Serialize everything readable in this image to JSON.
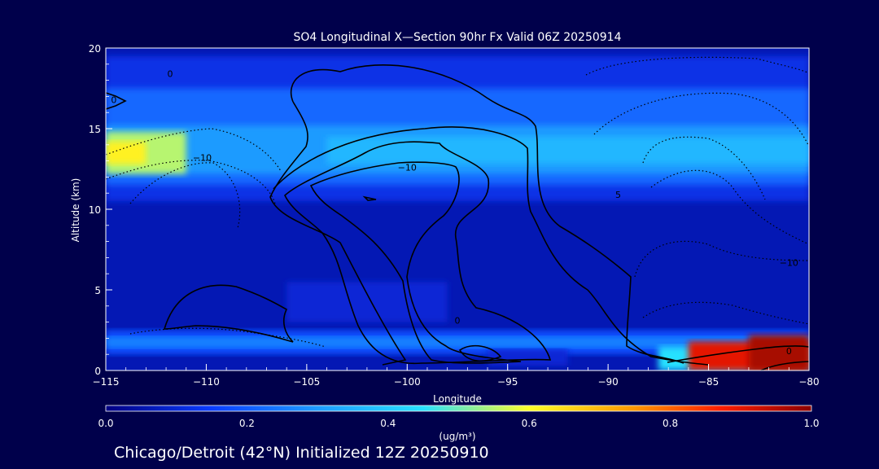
{
  "chart_data": {
    "type": "heatmap",
    "title": "SO4 Longitudinal X—Section 90hr  Fx Valid 06Z 20250914",
    "xlabel": "Longitude",
    "ylabel": "Altitude (km)",
    "xlim": [
      -115,
      -80
    ],
    "ylim": [
      0,
      20
    ],
    "x_ticks": [
      -115,
      -110,
      -105,
      -100,
      -95,
      -90,
      -85,
      -80
    ],
    "x_tick_labels": [
      "−115",
      "−110",
      "−105",
      "−100",
      "−95",
      "−90",
      "−85",
      "−80"
    ],
    "y_ticks": [
      0,
      5,
      10,
      15,
      20
    ],
    "y_tick_labels": [
      "0",
      "5",
      "10",
      "15",
      "20"
    ],
    "colorbar": {
      "min": 0.0,
      "max": 1.0,
      "ticks": [
        0.0,
        0.2,
        0.4,
        0.6,
        0.8,
        1.0
      ],
      "tick_labels": [
        "0.0",
        "0.2",
        "0.4",
        "0.6",
        "0.8",
        "1.0"
      ],
      "units_label": "(ug/m³)"
    },
    "contour_labels": [
      {
        "text": "0",
        "lon": -111.8,
        "alt": 18.2
      },
      {
        "text": "0",
        "lon": -114.6,
        "alt": 16.6
      },
      {
        "text": "−10",
        "lon": -110.2,
        "alt": 13.0
      },
      {
        "text": "−10",
        "lon": -100.0,
        "alt": 12.4
      },
      {
        "text": "5",
        "lon": -89.5,
        "alt": 10.7
      },
      {
        "text": "−10",
        "lon": -81.0,
        "alt": 6.5
      },
      {
        "text": "0",
        "lon": -81.0,
        "alt": 1.0
      },
      {
        "text": "0",
        "lon": -97.5,
        "alt": 2.9
      }
    ],
    "field_regions": [
      {
        "lon": [
          -115,
          -80
        ],
        "alt": [
          0,
          20
        ],
        "value": 0.06
      },
      {
        "lon": [
          -115,
          -80
        ],
        "alt": [
          10.5,
          19.5
        ],
        "value": 0.12
      },
      {
        "lon": [
          -115,
          -80
        ],
        "alt": [
          11.5,
          17.5
        ],
        "value": 0.22
      },
      {
        "lon": [
          -115,
          -80
        ],
        "alt": [
          12.2,
          15.2
        ],
        "value": 0.3
      },
      {
        "lon": [
          -104,
          -80
        ],
        "alt": [
          12.8,
          14.5
        ],
        "value": 0.36
      },
      {
        "lon": [
          -115,
          -111
        ],
        "alt": [
          12.2,
          14.8
        ],
        "value": 0.55
      },
      {
        "lon": [
          -115,
          -113
        ],
        "alt": [
          12.8,
          14.2
        ],
        "value": 0.62
      },
      {
        "lon": [
          -115,
          -80
        ],
        "alt": [
          1.0,
          2.5
        ],
        "value": 0.18
      },
      {
        "lon": [
          -115,
          -80
        ],
        "alt": [
          1.4,
          2.1
        ],
        "value": 0.26
      },
      {
        "lon": [
          -87.5,
          -80
        ],
        "alt": [
          0,
          1.5
        ],
        "value": 0.45
      },
      {
        "lon": [
          -86,
          -80
        ],
        "alt": [
          0,
          1.8
        ],
        "value": 0.9
      },
      {
        "lon": [
          -83,
          -80
        ],
        "alt": [
          0,
          2.2
        ],
        "value": 0.97
      },
      {
        "lon": [
          -106,
          -98
        ],
        "alt": [
          3.0,
          5.5
        ],
        "value": 0.1
      },
      {
        "lon": [
          -96,
          -92
        ],
        "alt": [
          0.3,
          1.3
        ],
        "value": 0.1
      }
    ]
  },
  "footer_label": "Chicago/Detroit (42°N) Initialized 12Z 20250910"
}
